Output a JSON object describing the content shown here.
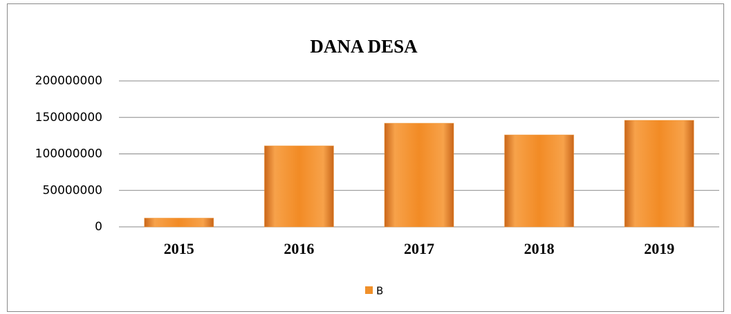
{
  "chart_data": {
    "type": "bar",
    "title": "DANA DESA",
    "categories": [
      "2015",
      "2016",
      "2017",
      "2018",
      "2019"
    ],
    "series": [
      {
        "name": "B",
        "color": "#f0902a",
        "values": [
          12000000,
          111000000,
          142000000,
          126000000,
          146000000
        ]
      }
    ],
    "ylim": [
      0,
      200000000
    ],
    "yticks": [
      0,
      50000000,
      100000000,
      150000000,
      200000000
    ],
    "grid": true,
    "legend": "bottom"
  }
}
